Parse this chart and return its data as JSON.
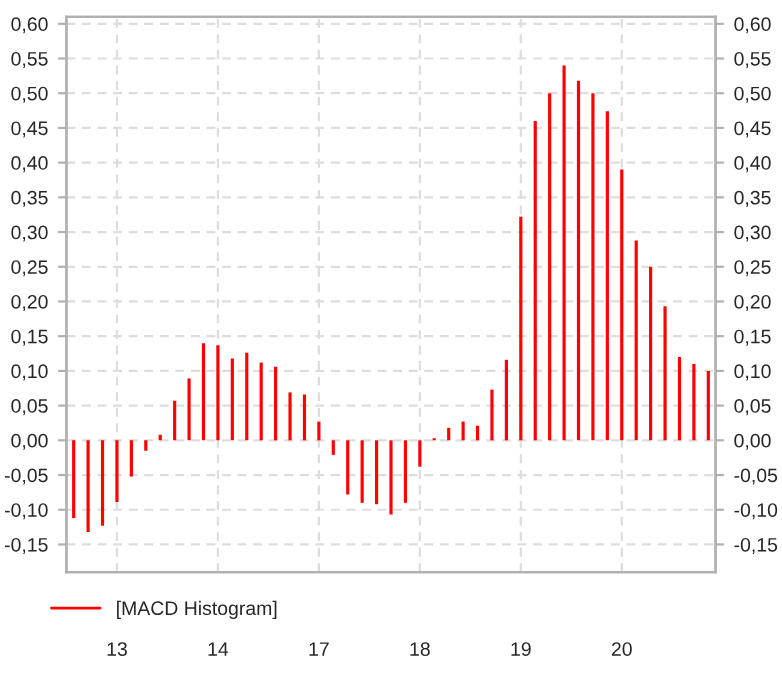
{
  "chart_data": {
    "type": "bar",
    "categories": [
      null,
      null,
      null,
      "13",
      null,
      null,
      null,
      null,
      null,
      null,
      "14",
      null,
      null,
      null,
      null,
      null,
      null,
      "17",
      null,
      null,
      null,
      null,
      null,
      null,
      "18",
      null,
      null,
      null,
      null,
      null,
      null,
      "19",
      null,
      null,
      null,
      null,
      null,
      null,
      "20",
      null,
      null,
      null,
      null,
      null,
      null
    ],
    "series": [
      {
        "name": "[MACD Histogram]",
        "color": "#ff0000",
        "values": [
          -0.112,
          -0.132,
          -0.123,
          -0.089,
          -0.052,
          -0.015,
          0.008,
          0.057,
          0.089,
          0.14,
          0.137,
          0.118,
          0.126,
          0.112,
          0.106,
          0.069,
          0.066,
          0.027,
          -0.021,
          -0.078,
          -0.09,
          -0.092,
          -0.107,
          -0.09,
          -0.038,
          0.003,
          0.018,
          0.027,
          0.021,
          0.073,
          0.116,
          0.322,
          0.46,
          0.5,
          0.54,
          0.518,
          0.5,
          0.474,
          0.39,
          0.288,
          0.25,
          0.193,
          0.12,
          0.11,
          0.1
        ]
      }
    ],
    "ylim": [
      -0.19,
      0.61
    ],
    "yticks": [
      {
        "value": -0.15,
        "label": "-0,15"
      },
      {
        "value": -0.1,
        "label": "-0,10"
      },
      {
        "value": -0.05,
        "label": "-0,05"
      },
      {
        "value": 0,
        "label": "0,00"
      },
      {
        "value": 0.05,
        "label": "0,05"
      },
      {
        "value": 0.1,
        "label": "0,10"
      },
      {
        "value": 0.15,
        "label": "0,15"
      },
      {
        "value": 0.2,
        "label": "0,20"
      },
      {
        "value": 0.25,
        "label": "0,25"
      },
      {
        "value": 0.3,
        "label": "0,30"
      },
      {
        "value": 0.35,
        "label": "0,35"
      },
      {
        "value": 0.4,
        "label": "0,40"
      },
      {
        "value": 0.45,
        "label": "0,45"
      },
      {
        "value": 0.5,
        "label": "0,50"
      },
      {
        "value": 0.55,
        "label": "0,55"
      },
      {
        "value": 0.6,
        "label": "0,60"
      }
    ],
    "y2lim": [
      -0.19,
      0.61
    ],
    "y2ticks": [
      {
        "value": -0.15,
        "label": "-0,15"
      },
      {
        "value": -0.1,
        "label": "-0,10"
      },
      {
        "value": -0.05,
        "label": "-0,05"
      },
      {
        "value": 0,
        "label": "0,00"
      },
      {
        "value": 0.05,
        "label": "0,05"
      },
      {
        "value": 0.1,
        "label": "0,10"
      },
      {
        "value": 0.15,
        "label": "0,15"
      },
      {
        "value": 0.2,
        "label": "0,20"
      },
      {
        "value": 0.25,
        "label": "0,25"
      },
      {
        "value": 0.3,
        "label": "0,30"
      },
      {
        "value": 0.35,
        "label": "0,35"
      },
      {
        "value": 0.4,
        "label": "0,40"
      },
      {
        "value": 0.45,
        "label": "0,45"
      },
      {
        "value": 0.5,
        "label": "0,50"
      },
      {
        "value": 0.55,
        "label": "0,55"
      },
      {
        "value": 0.6,
        "label": "0,60"
      }
    ],
    "grid": true,
    "legend": "bottom"
  }
}
